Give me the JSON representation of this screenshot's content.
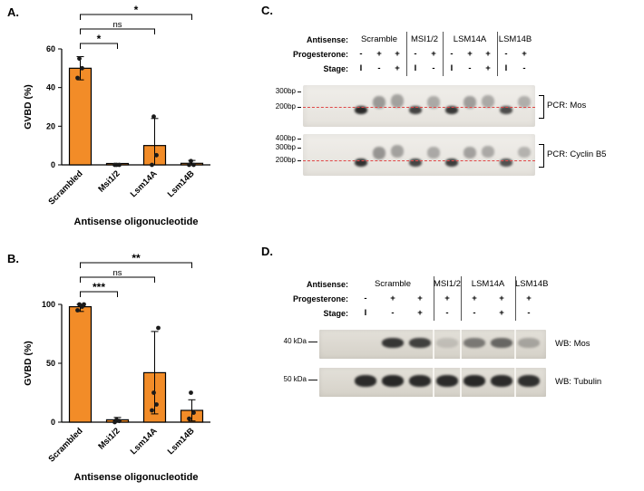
{
  "colors": {
    "bar_fill": "#F28C28",
    "bar_stroke": "#000000",
    "point_color": "#1a1a1a",
    "red_dash": "#e04747"
  },
  "panelA": {
    "label": "A.",
    "chart_data": {
      "type": "bar",
      "title": "",
      "categories": [
        "Scrambled",
        "Msi1/2",
        "Lsm14A",
        "Lsm14B"
      ],
      "values": [
        50,
        0.3,
        10,
        0.8
      ],
      "errors": [
        6,
        0.3,
        14,
        1.5
      ],
      "points": [
        [
          45,
          50,
          55
        ],
        [
          0,
          0,
          0
        ],
        [
          0,
          5,
          25
        ],
        [
          0,
          0,
          2
        ]
      ],
      "ylabel": "GVBD (%)",
      "xlabel": "Antisense oligonucleotide",
      "ylim": [
        0,
        60
      ],
      "yticks": [
        0,
        20,
        40,
        60
      ],
      "comparisons": [
        {
          "a": 0,
          "b": 1,
          "label": "*"
        },
        {
          "a": 0,
          "b": 2,
          "label": "ns"
        },
        {
          "a": 0,
          "b": 3,
          "label": "*"
        }
      ]
    }
  },
  "panelB": {
    "label": "B.",
    "chart_data": {
      "type": "bar",
      "title": "",
      "categories": [
        "Scrambled",
        "Msi1/2",
        "Lsm14A",
        "Lsm14B"
      ],
      "values": [
        98,
        2,
        42,
        10
      ],
      "errors": [
        4,
        2,
        35,
        9
      ],
      "points": [
        [
          95,
          98,
          100,
          100
        ],
        [
          0,
          1,
          2
        ],
        [
          10,
          15,
          25,
          80
        ],
        [
          3,
          8,
          25
        ]
      ],
      "ylabel": "GVBD (%)",
      "xlabel": "Antisense oligonucleotide",
      "ylim": [
        0,
        100
      ],
      "yticks": [
        0,
        50,
        100
      ],
      "comparisons": [
        {
          "a": 0,
          "b": 1,
          "label": "***"
        },
        {
          "a": 0,
          "b": 2,
          "label": "ns"
        },
        {
          "a": 0,
          "b": 3,
          "label": "**"
        }
      ]
    }
  },
  "panelC": {
    "label": "C.",
    "row_labels": {
      "antisense": "Antisense:",
      "progesterone": "Progesterone:",
      "stage": "Stage:"
    },
    "groups": [
      {
        "name": "Scramble",
        "progesterone": [
          "-",
          "+",
          "+"
        ],
        "stage": [
          "I",
          "-",
          "+"
        ]
      },
      {
        "name": "MSI1/2",
        "progesterone": [
          "-",
          "+"
        ],
        "stage": [
          "I",
          "-"
        ]
      },
      {
        "name": "LSM14A",
        "progesterone": [
          "-",
          "+",
          "+"
        ],
        "stage": [
          "I",
          "-",
          "+"
        ]
      },
      {
        "name": "LSM14B",
        "progesterone": [
          "-",
          "+"
        ],
        "stage": [
          "I",
          "-"
        ]
      }
    ],
    "gels": [
      {
        "label": "PCR: Mos",
        "ladder": [
          {
            "text": "300bp",
            "y": 0.15
          },
          {
            "text": "200bp",
            "y": 0.52
          }
        ],
        "red_line_y": 0.52,
        "lanes": [
          {
            "y": 0.5,
            "h": 0.2,
            "intensity": 0.92
          },
          {
            "y": 0.26,
            "h": 0.3,
            "intensity": 0.38
          },
          {
            "y": 0.22,
            "h": 0.32,
            "intensity": 0.34
          },
          {
            "y": 0.5,
            "h": 0.2,
            "intensity": 0.8
          },
          {
            "y": 0.26,
            "h": 0.3,
            "intensity": 0.3
          },
          {
            "y": 0.5,
            "h": 0.2,
            "intensity": 0.85
          },
          {
            "y": 0.26,
            "h": 0.3,
            "intensity": 0.36
          },
          {
            "y": 0.24,
            "h": 0.3,
            "intensity": 0.3
          },
          {
            "y": 0.5,
            "h": 0.2,
            "intensity": 0.75
          },
          {
            "y": 0.26,
            "h": 0.28,
            "intensity": 0.28
          }
        ]
      },
      {
        "label": "PCR: Cyclin B5",
        "ladder": [
          {
            "text": "400bp",
            "y": 0.1
          },
          {
            "text": "300bp",
            "y": 0.32
          },
          {
            "text": "200bp",
            "y": 0.62
          }
        ],
        "red_line_y": 0.62,
        "lanes": [
          {
            "y": 0.58,
            "h": 0.2,
            "intensity": 0.88
          },
          {
            "y": 0.3,
            "h": 0.3,
            "intensity": 0.4
          },
          {
            "y": 0.26,
            "h": 0.3,
            "intensity": 0.34
          },
          {
            "y": 0.58,
            "h": 0.2,
            "intensity": 0.78
          },
          {
            "y": 0.3,
            "h": 0.28,
            "intensity": 0.3
          },
          {
            "y": 0.58,
            "h": 0.2,
            "intensity": 0.82
          },
          {
            "y": 0.3,
            "h": 0.28,
            "intensity": 0.34
          },
          {
            "y": 0.28,
            "h": 0.28,
            "intensity": 0.3
          },
          {
            "y": 0.58,
            "h": 0.2,
            "intensity": 0.72
          },
          {
            "y": 0.3,
            "h": 0.26,
            "intensity": 0.26
          }
        ]
      }
    ]
  },
  "panelD": {
    "label": "D.",
    "row_labels": {
      "antisense": "Antisense:",
      "progesterone": "Progesterone:",
      "stage": "Stage:"
    },
    "groups": [
      {
        "name": "Scramble",
        "progesterone": [
          "-",
          "+",
          "+"
        ],
        "stage": [
          "I",
          "-",
          "+"
        ]
      },
      {
        "name": "MSI1/2",
        "progesterone": [
          "+"
        ],
        "stage": [
          "-"
        ]
      },
      {
        "name": "LSM14A",
        "progesterone": [
          "+",
          "+"
        ],
        "stage": [
          "-",
          "+"
        ]
      },
      {
        "name": "LSM14B",
        "progesterone": [
          "+"
        ],
        "stage": [
          "-"
        ]
      }
    ],
    "blots": [
      {
        "label": "WB: Mos",
        "marker": "40 kDa",
        "band_y": 0.45,
        "lanes": [
          0,
          0.85,
          0.8,
          0.14,
          0.5,
          0.6,
          0.28
        ]
      },
      {
        "label": "WB: Tubulin",
        "marker": "50 kDa",
        "band_y": 0.45,
        "lanes": [
          0.9,
          0.92,
          0.9,
          0.9,
          0.92,
          0.9,
          0.88
        ]
      }
    ]
  }
}
